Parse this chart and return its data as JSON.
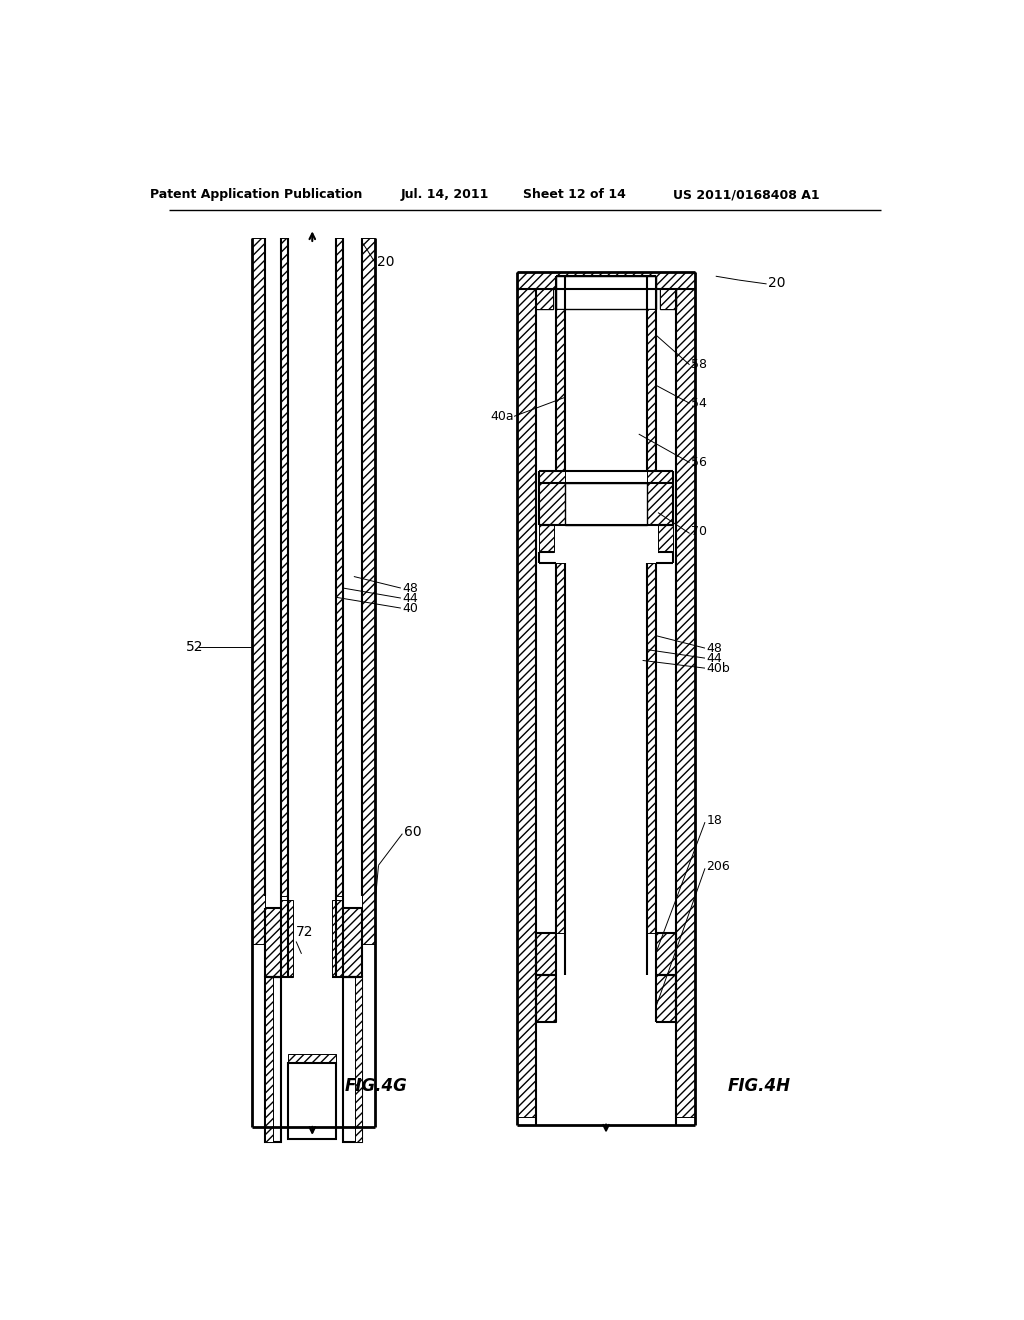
{
  "background_color": "#ffffff",
  "header": {
    "left": "Patent Application Publication",
    "date": "Jul. 14, 2011",
    "sheet": "Sheet 12 of 14",
    "right": "US 2011/0168408 A1"
  },
  "fig_left_label": "FIG.4G",
  "fig_right_label": "FIG.4H",
  "text_color": "#000000"
}
